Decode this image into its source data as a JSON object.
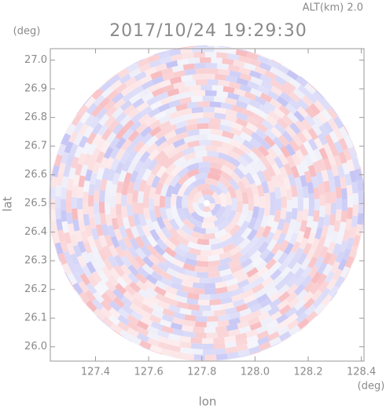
{
  "chart_data": {
    "type": "radar-image",
    "title": "2017/10/24 19:29:30",
    "subtitle": "ALT(km) 2.0",
    "x_label": "lon",
    "y_label": "lat",
    "x_unit": "(deg)",
    "y_unit": "(deg)",
    "xlim": [
      127.23,
      128.41
    ],
    "ylim": [
      25.95,
      27.04
    ],
    "xticks": [
      127.4,
      127.6,
      127.8,
      {
        "value": 128.0,
        "label": "128.0"
      },
      128.2,
      128.4
    ],
    "yticks": [
      {
        "value": 26.0,
        "label": "26.0"
      },
      26.1,
      26.2,
      26.3,
      26.4,
      26.5,
      26.6,
      26.7,
      26.8,
      26.9,
      {
        "value": 27.0,
        "label": "27.0"
      }
    ]
  }
}
